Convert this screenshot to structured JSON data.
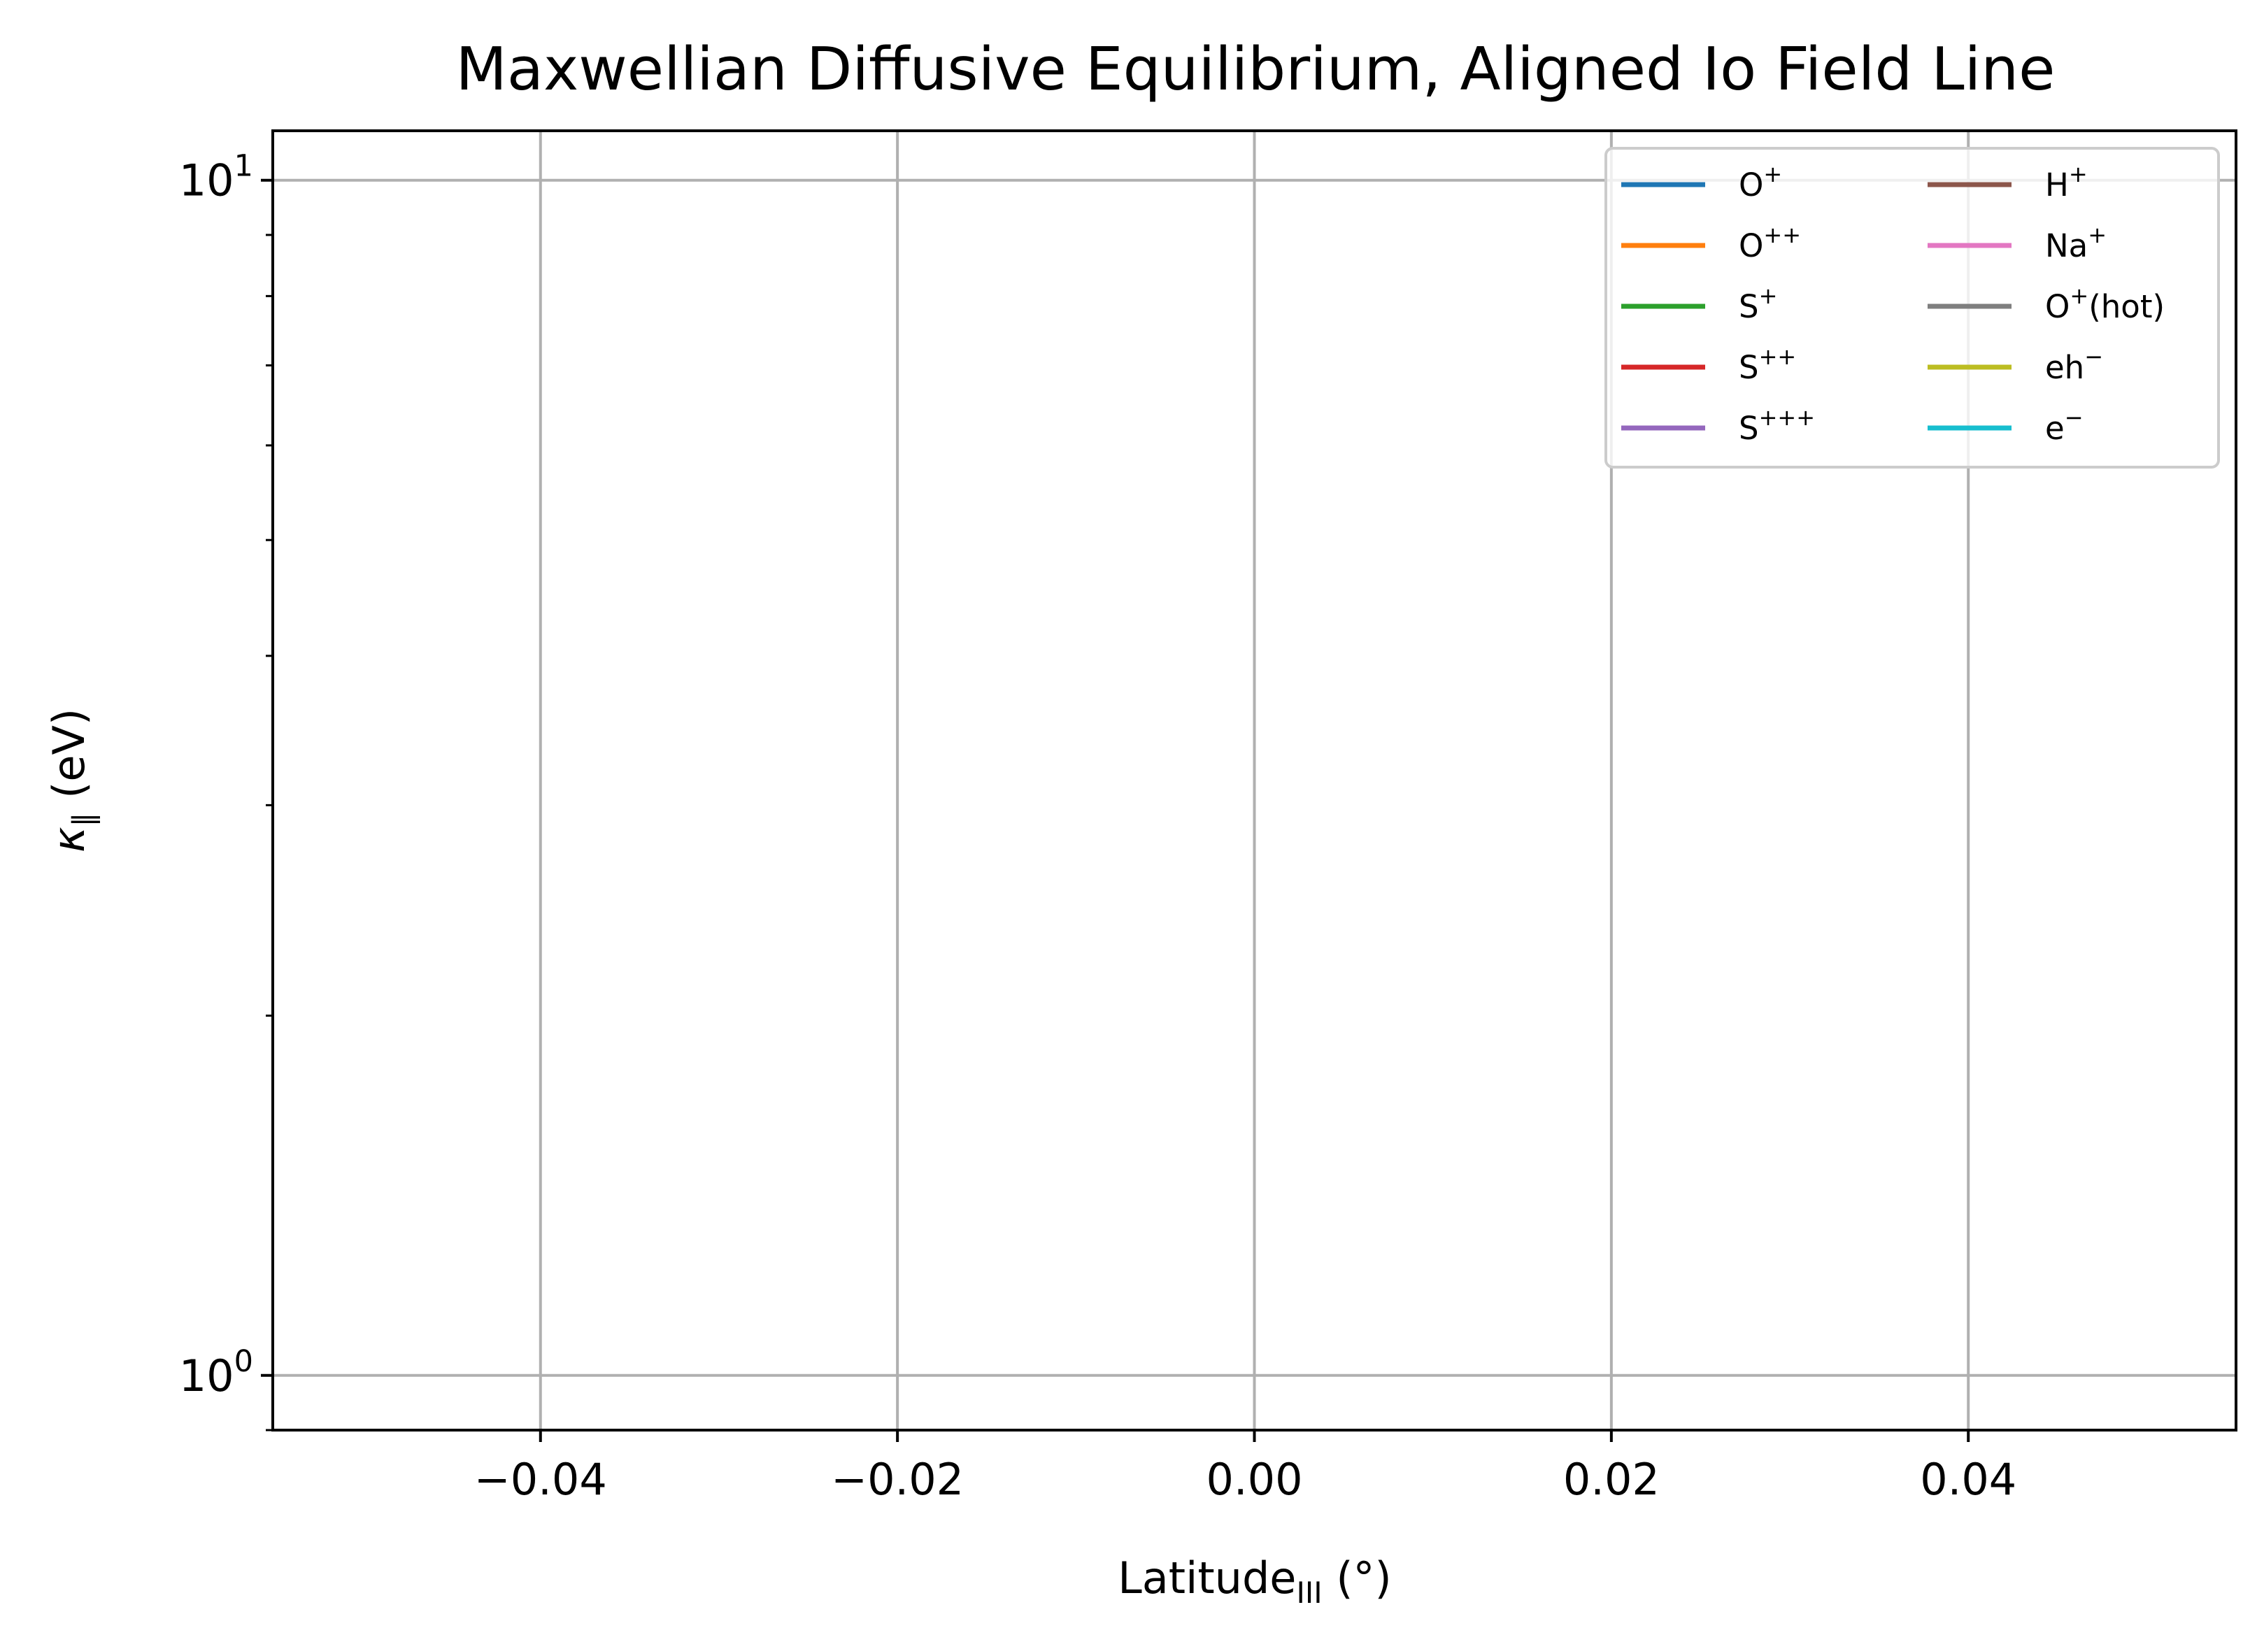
{
  "chart_data": {
    "type": "line",
    "title": "Maxwellian Diffusive Equilibrium, Aligned Io Field Line",
    "xlabel": {
      "main": "Latitude",
      "sub": "III",
      "unit": " (°)"
    },
    "ylabel": {
      "symbol": "κ",
      "sub": "∥",
      "unit": "  (eV)"
    },
    "xlim": [
      -0.055,
      0.055
    ],
    "ylim": [
      0.9,
      11
    ],
    "yscale": "log",
    "grid": true,
    "x_ticks": [
      {
        "value": -0.04,
        "label": "−0.04"
      },
      {
        "value": -0.02,
        "label": "−0.02"
      },
      {
        "value": 0.0,
        "label": "0.00"
      },
      {
        "value": 0.02,
        "label": "0.02"
      },
      {
        "value": 0.04,
        "label": "0.04"
      }
    ],
    "y_ticks": [
      {
        "value": 1,
        "base": "10",
        "exp": "0"
      },
      {
        "value": 10,
        "base": "10",
        "exp": "1"
      }
    ],
    "y_minor_ticks": [
      0.9,
      2,
      3,
      4,
      5,
      6,
      7,
      8,
      9
    ],
    "legend": {
      "placement": "top-right",
      "columns": 2
    },
    "series": [
      {
        "name": "O",
        "sup": "+",
        "tail": "",
        "color": "#1f77b4",
        "x": [],
        "y": []
      },
      {
        "name": "O",
        "sup": "++",
        "tail": "",
        "color": "#ff7f0e",
        "x": [],
        "y": []
      },
      {
        "name": "S",
        "sup": "+",
        "tail": "",
        "color": "#2ca02c",
        "x": [],
        "y": []
      },
      {
        "name": "S",
        "sup": "++",
        "tail": "",
        "color": "#d62728",
        "x": [],
        "y": []
      },
      {
        "name": "S",
        "sup": "+++",
        "tail": "",
        "color": "#9467bd",
        "x": [],
        "y": []
      },
      {
        "name": "H",
        "sup": "+",
        "tail": "",
        "color": "#8c564b",
        "x": [],
        "y": []
      },
      {
        "name": "Na",
        "sup": "+",
        "tail": "",
        "color": "#e377c2",
        "x": [],
        "y": []
      },
      {
        "name": "O",
        "sup": "+",
        "tail": "(hot)",
        "color": "#7f7f7f",
        "x": [],
        "y": []
      },
      {
        "name": "eh",
        "sup": "−",
        "tail": "",
        "color": "#bcbd22",
        "x": [],
        "y": []
      },
      {
        "name": "e",
        "sup": "−",
        "tail": "",
        "color": "#17becf",
        "x": [],
        "y": []
      }
    ]
  }
}
